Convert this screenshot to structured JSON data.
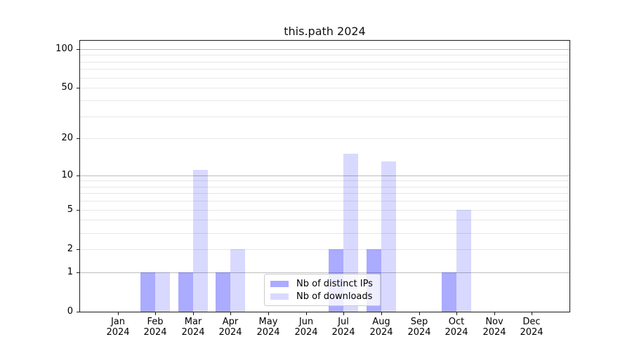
{
  "chart_data": {
    "type": "bar",
    "title": "this.path 2024",
    "categories": [
      "Jan",
      "Feb",
      "Mar",
      "Apr",
      "May",
      "Jun",
      "Jul",
      "Aug",
      "Sep",
      "Oct",
      "Nov",
      "Dec"
    ],
    "category_year": "2024",
    "series": [
      {
        "name": "Nb of distinct IPs",
        "color": "rgba(0,0,255,0.33)",
        "color_hex": "#aaaaf8",
        "values": [
          0,
          1,
          1,
          1,
          0,
          0,
          2,
          2,
          0,
          1,
          0,
          0
        ]
      },
      {
        "name": "Nb of downloads",
        "color": "rgba(0,0,255,0.15)",
        "color_hex": "#d9d9fb",
        "values": [
          0,
          1,
          11,
          2,
          0,
          0,
          15,
          13,
          0,
          5,
          0,
          0
        ]
      }
    ],
    "yscale": "log1p",
    "ylim": [
      0,
      115
    ],
    "ytick_values": [
      0,
      1,
      2,
      5,
      10,
      20,
      50,
      100
    ],
    "ytick_labels": [
      "0",
      "1",
      "2",
      "5",
      "10",
      "20",
      "50",
      "100"
    ],
    "major_gridlines": [
      1,
      10,
      100
    ],
    "minor_gridlines": [
      2,
      3,
      4,
      5,
      6,
      7,
      8,
      9,
      20,
      30,
      40,
      50,
      60,
      70,
      80,
      90
    ],
    "grid": true,
    "legend_position": "inside-lower-center-left",
    "xlabel": "",
    "ylabel": ""
  },
  "colors": {
    "major_grid": "#bdbdbd",
    "minor_grid": "#e7e7e7",
    "spine": "#1a1a1a",
    "background": "#ffffff"
  }
}
